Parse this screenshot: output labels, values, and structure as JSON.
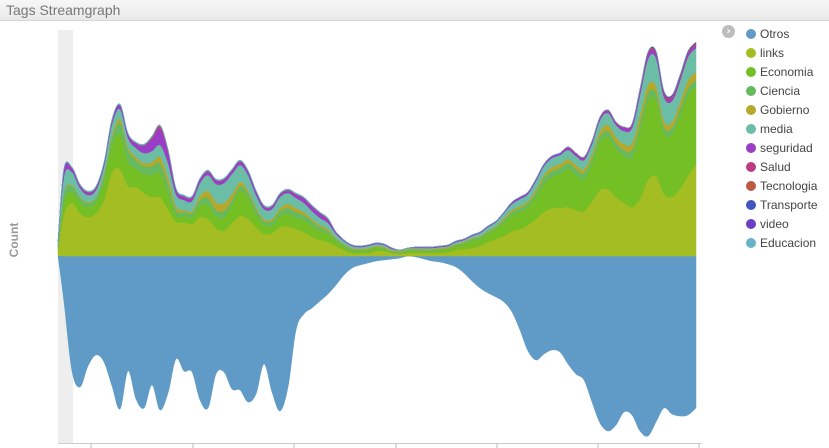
{
  "window": {
    "title": "Tags Streamgraph"
  },
  "chart_data": {
    "type": "area",
    "title": "",
    "xlabel": "",
    "ylabel": "Count",
    "offset": "wiggle",
    "x": [
      0,
      6,
      14,
      22,
      30,
      38,
      46,
      54,
      62,
      70,
      78,
      86,
      94,
      102,
      110,
      118,
      126,
      134,
      142,
      150,
      158,
      166,
      174,
      182,
      190,
      198,
      206,
      214,
      222,
      230,
      238,
      246,
      254,
      262,
      270,
      278,
      286,
      294,
      302,
      310,
      318,
      326,
      334,
      342,
      350,
      358,
      366,
      374,
      382,
      390,
      398,
      406,
      414,
      422,
      430,
      438,
      446,
      454,
      462,
      470,
      478,
      486,
      494,
      502,
      510,
      518,
      526,
      534,
      542,
      550,
      558,
      566,
      574,
      582,
      590,
      598,
      606,
      614,
      622,
      630,
      638
    ],
    "lower_baseline": [
      0,
      46,
      115,
      131,
      110,
      99,
      106,
      130,
      153,
      115,
      143,
      152,
      129,
      154,
      137,
      103,
      115,
      116,
      144,
      152,
      118,
      116,
      133,
      134,
      146,
      138,
      108,
      136,
      155,
      131,
      74,
      58,
      52,
      45,
      38,
      29,
      19,
      12,
      9,
      7,
      5,
      4,
      3,
      2,
      0,
      1,
      3,
      5,
      6,
      8,
      11,
      17,
      25,
      32,
      37,
      41,
      46,
      56,
      74,
      95,
      104,
      98,
      94,
      96,
      108,
      118,
      124,
      146,
      167,
      175,
      169,
      156,
      159,
      175,
      180,
      166,
      152,
      158,
      160,
      159,
      152
    ],
    "series": [
      {
        "name": "Otros",
        "values": [
          0,
          46,
          115,
          131,
          110,
          99,
          106,
          130,
          153,
          115,
          143,
          152,
          129,
          154,
          137,
          103,
          115,
          116,
          144,
          152,
          118,
          116,
          133,
          134,
          146,
          138,
          108,
          136,
          155,
          131,
          74,
          58,
          52,
          45,
          38,
          29,
          19,
          12,
          9,
          7,
          5,
          4,
          3,
          2,
          0,
          1,
          3,
          5,
          6,
          8,
          11,
          17,
          25,
          32,
          37,
          41,
          46,
          56,
          74,
          95,
          104,
          98,
          94,
          96,
          108,
          118,
          124,
          146,
          167,
          175,
          169,
          156,
          159,
          175,
          180,
          166,
          152,
          158,
          160,
          159,
          152
        ]
      },
      {
        "name": "links",
        "values": [
          6,
          42,
          53,
          43,
          39,
          43,
          56,
          84,
          87,
          70,
          69,
          63,
          59,
          59,
          47,
          34,
          34,
          32,
          39,
          37,
          28,
          25,
          33,
          40,
          37,
          29,
          22,
          23,
          29,
          30,
          27,
          24,
          19,
          16,
          14,
          10,
          6,
          3,
          3,
          3,
          5,
          5,
          3,
          2,
          3,
          3,
          3,
          3,
          3,
          4,
          6,
          7,
          8,
          10,
          14,
          17,
          20,
          25,
          27,
          31,
          37,
          44,
          48,
          48,
          49,
          46,
          45,
          55,
          66,
          67,
          59,
          53,
          49,
          57,
          76,
          80,
          62,
          59,
          67,
          80,
          91
        ]
      },
      {
        "name": "Economia",
        "values": [
          2,
          13,
          11,
          11,
          10,
          11,
          19,
          27,
          35,
          24,
          18,
          19,
          22,
          24,
          16,
          7,
          6,
          7,
          11,
          14,
          12,
          14,
          18,
          25,
          21,
          13,
          9,
          8,
          11,
          12,
          11,
          12,
          11,
          9,
          8,
          5,
          3,
          2,
          2,
          3,
          3,
          2,
          1,
          1,
          2,
          2,
          2,
          2,
          3,
          3,
          4,
          5,
          7,
          7,
          8,
          10,
          13,
          16,
          17,
          18,
          22,
          28,
          31,
          34,
          38,
          35,
          32,
          37,
          48,
          52,
          48,
          47,
          50,
          68,
          79,
          76,
          61,
          63,
          73,
          81,
          78
        ]
      },
      {
        "name": "Ciencia",
        "values": [
          2,
          8,
          6,
          4,
          4,
          4,
          5,
          7,
          11,
          12,
          9,
          8,
          9,
          10,
          9,
          5,
          4,
          4,
          6,
          7,
          6,
          6,
          5,
          5,
          5,
          5,
          4,
          4,
          5,
          6,
          6,
          5,
          5,
          4,
          3,
          2,
          2,
          2,
          1,
          1,
          1,
          1,
          1,
          1,
          1,
          1,
          1,
          1,
          1,
          1,
          1,
          1,
          2,
          2,
          2,
          2,
          3,
          3,
          4,
          4,
          5,
          6,
          6,
          6,
          6,
          6,
          6,
          6,
          6,
          6,
          6,
          6,
          7,
          8,
          8,
          7,
          6,
          6,
          7,
          7,
          7
        ]
      },
      {
        "name": "Gobierno",
        "values": [
          0,
          1,
          1,
          1,
          1,
          1,
          2,
          3,
          4,
          3,
          3,
          3,
          4,
          6,
          7,
          4,
          2,
          2,
          4,
          7,
          8,
          8,
          6,
          4,
          3,
          2,
          2,
          2,
          3,
          4,
          4,
          3,
          2,
          2,
          2,
          1,
          1,
          1,
          1,
          1,
          1,
          1,
          1,
          1,
          1,
          1,
          1,
          1,
          1,
          1,
          1,
          1,
          1,
          1,
          1,
          1,
          2,
          2,
          2,
          2,
          3,
          3,
          4,
          4,
          4,
          4,
          4,
          4,
          5,
          6,
          6,
          6,
          7,
          8,
          8,
          7,
          6,
          6,
          7,
          8,
          8
        ]
      },
      {
        "name": "media",
        "values": [
          4,
          16,
          13,
          9,
          7,
          7,
          8,
          11,
          10,
          9,
          9,
          10,
          11,
          12,
          14,
          12,
          10,
          10,
          13,
          16,
          18,
          20,
          20,
          17,
          15,
          12,
          10,
          10,
          11,
          11,
          10,
          9,
          8,
          7,
          6,
          4,
          3,
          2,
          2,
          2,
          2,
          2,
          1,
          1,
          1,
          1,
          1,
          1,
          1,
          1,
          2,
          2,
          2,
          3,
          4,
          4,
          5,
          6,
          7,
          7,
          8,
          9,
          9,
          9,
          9,
          9,
          9,
          10,
          11,
          12,
          12,
          13,
          15,
          20,
          26,
          28,
          24,
          21,
          21,
          23,
          24
        ]
      },
      {
        "name": "seguridad",
        "values": [
          0,
          6,
          3,
          2,
          2,
          2,
          2,
          3,
          3,
          3,
          4,
          7,
          12,
          16,
          10,
          4,
          3,
          3,
          3,
          3,
          3,
          3,
          3,
          3,
          3,
          3,
          2,
          2,
          2,
          2,
          3,
          4,
          4,
          4,
          3,
          2,
          1,
          1,
          1,
          1,
          1,
          1,
          1,
          0,
          0,
          1,
          1,
          1,
          1,
          1,
          1,
          1,
          1,
          1,
          1,
          1,
          1,
          2,
          2,
          2,
          2,
          2,
          2,
          2,
          2,
          2,
          2,
          2,
          2,
          2,
          2,
          3,
          3,
          4,
          4,
          4,
          3,
          3,
          3,
          3,
          3
        ]
      },
      {
        "name": "Salud",
        "values": [
          0,
          1,
          1,
          1,
          1,
          1,
          1,
          1,
          1,
          1,
          1,
          1,
          1,
          2,
          2,
          1,
          1,
          1,
          1,
          1,
          1,
          1,
          1,
          1,
          1,
          1,
          1,
          1,
          1,
          1,
          1,
          1,
          1,
          1,
          1,
          0,
          0,
          0,
          0,
          0,
          0,
          0,
          0,
          0,
          0,
          0,
          0,
          0,
          0,
          0,
          0,
          0,
          0,
          0,
          0,
          0,
          0,
          0,
          0,
          0,
          0,
          0,
          0,
          0,
          1,
          1,
          1,
          1,
          1,
          1,
          1,
          1,
          1,
          1,
          1,
          1,
          1,
          1,
          1,
          1,
          1
        ]
      },
      {
        "name": "Tecnologia",
        "values": [
          0,
          0,
          0,
          0,
          0,
          0,
          0,
          0,
          0,
          0,
          0,
          0,
          1,
          1,
          1,
          0,
          0,
          0,
          0,
          0,
          0,
          0,
          0,
          0,
          0,
          0,
          0,
          0,
          0,
          0,
          0,
          0,
          0,
          0,
          0,
          0,
          0,
          0,
          0,
          0,
          0,
          0,
          0,
          0,
          0,
          0,
          0,
          0,
          0,
          0,
          0,
          0,
          0,
          0,
          0,
          0,
          0,
          0,
          0,
          0,
          0,
          0,
          0,
          0,
          0,
          0,
          0,
          0,
          0,
          0,
          0,
          0,
          0,
          1,
          1,
          1,
          1,
          1,
          1,
          1,
          1
        ]
      },
      {
        "name": "Transporte",
        "values": [
          0,
          0,
          0,
          0,
          0,
          0,
          0,
          0,
          0,
          0,
          0,
          0,
          0,
          0,
          0,
          0,
          0,
          0,
          0,
          0,
          0,
          0,
          0,
          0,
          0,
          0,
          0,
          0,
          0,
          0,
          0,
          0,
          0,
          0,
          0,
          0,
          0,
          0,
          0,
          0,
          0,
          0,
          0,
          0,
          0,
          0,
          0,
          0,
          0,
          0,
          0,
          0,
          0,
          0,
          0,
          0,
          0,
          0,
          0,
          0,
          0,
          0,
          0,
          0,
          0,
          0,
          0,
          0,
          0,
          0,
          0,
          0,
          0,
          0,
          0,
          0,
          0,
          0,
          0,
          0,
          0
        ]
      },
      {
        "name": "video",
        "values": [
          0,
          0,
          0,
          0,
          0,
          0,
          0,
          0,
          0,
          0,
          0,
          0,
          0,
          0,
          0,
          0,
          0,
          0,
          0,
          0,
          0,
          0,
          0,
          0,
          0,
          0,
          0,
          0,
          0,
          0,
          0,
          0,
          0,
          0,
          0,
          0,
          0,
          0,
          0,
          0,
          0,
          0,
          0,
          0,
          0,
          0,
          0,
          0,
          0,
          0,
          0,
          0,
          0,
          0,
          0,
          0,
          0,
          0,
          0,
          0,
          0,
          0,
          0,
          0,
          0,
          0,
          0,
          0,
          0,
          0,
          0,
          0,
          0,
          0,
          1,
          1,
          1,
          1,
          1,
          1,
          1
        ]
      },
      {
        "name": "Educacion",
        "values": [
          0,
          1,
          1,
          1,
          1,
          1,
          1,
          1,
          1,
          1,
          1,
          1,
          1,
          1,
          1,
          1,
          1,
          1,
          1,
          1,
          1,
          1,
          1,
          1,
          1,
          1,
          1,
          1,
          1,
          1,
          1,
          1,
          1,
          1,
          1,
          0,
          0,
          0,
          0,
          0,
          0,
          0,
          0,
          0,
          0,
          0,
          0,
          0,
          0,
          0,
          0,
          0,
          0,
          0,
          0,
          0,
          0,
          0,
          0,
          0,
          0,
          0,
          0,
          0,
          0,
          0,
          0,
          0,
          0,
          0,
          0,
          0,
          0,
          0,
          0,
          0,
          0,
          0,
          0,
          0,
          0
        ]
      }
    ],
    "colors": [
      "#5f9bc6",
      "#a3bd22",
      "#74bf23",
      "#66b95c",
      "#b5a82d",
      "#6bbea5",
      "#9a3ec7",
      "#bd3d84",
      "#bd5843",
      "#4254c2",
      "#6a3fc4",
      "#68b3c6"
    ],
    "legend": {
      "position": "right"
    },
    "grid": false
  }
}
